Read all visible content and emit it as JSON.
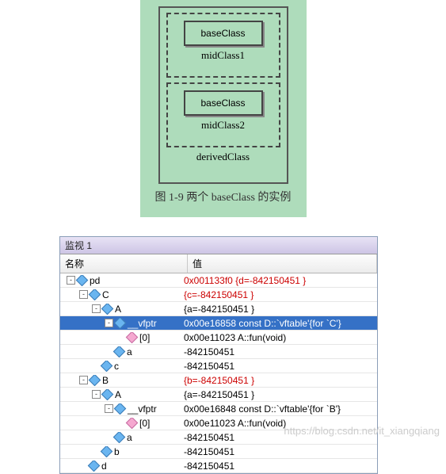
{
  "diagram": {
    "baseClass_label": "baseClass",
    "midClass1_label": "midClass1",
    "midClass2_label": "midClass2",
    "derived_label": "derivedClass",
    "caption": "图 1-9  两个 baseClass 的实例"
  },
  "watch": {
    "title": "监视 1",
    "col_name": "名称",
    "col_value": "值",
    "rows": [
      {
        "indent": 0,
        "toggle": "-",
        "icon": "blue",
        "name": "pd",
        "value": "0x001133f0 {d=-842150451 }",
        "red": true,
        "sel": false
      },
      {
        "indent": 1,
        "toggle": "-",
        "icon": "blue",
        "name": "C",
        "value": "{c=-842150451 }",
        "red": true,
        "sel": false
      },
      {
        "indent": 2,
        "toggle": "-",
        "icon": "blue",
        "name": "A",
        "value": "{a=-842150451 }",
        "red": false,
        "sel": false
      },
      {
        "indent": 3,
        "toggle": "-",
        "icon": "blue",
        "name": "__vfptr",
        "value": "0x00e16858 const D::`vftable'{for `C'}",
        "red": false,
        "sel": true
      },
      {
        "indent": 4,
        "toggle": "",
        "icon": "pink",
        "name": "[0]",
        "value": "0x00e11023 A::fun(void)",
        "red": false,
        "sel": false
      },
      {
        "indent": 3,
        "toggle": "",
        "icon": "blue",
        "name": "a",
        "value": "-842150451",
        "red": false,
        "sel": false
      },
      {
        "indent": 2,
        "toggle": "",
        "icon": "blue",
        "name": "c",
        "value": "-842150451",
        "red": false,
        "sel": false
      },
      {
        "indent": 1,
        "toggle": "-",
        "icon": "blue",
        "name": "B",
        "value": "{b=-842150451 }",
        "red": true,
        "sel": false
      },
      {
        "indent": 2,
        "toggle": "-",
        "icon": "blue",
        "name": "A",
        "value": "{a=-842150451 }",
        "red": false,
        "sel": false
      },
      {
        "indent": 3,
        "toggle": "-",
        "icon": "blue",
        "name": "__vfptr",
        "value": "0x00e16848 const D::`vftable'{for `B'}",
        "red": false,
        "sel": false
      },
      {
        "indent": 4,
        "toggle": "",
        "icon": "pink",
        "name": "[0]",
        "value": "0x00e11023 A::fun(void)",
        "red": false,
        "sel": false
      },
      {
        "indent": 3,
        "toggle": "",
        "icon": "blue",
        "name": "a",
        "value": "-842150451",
        "red": false,
        "sel": false
      },
      {
        "indent": 2,
        "toggle": "",
        "icon": "blue",
        "name": "b",
        "value": "-842150451",
        "red": false,
        "sel": false
      },
      {
        "indent": 1,
        "toggle": "",
        "icon": "blue",
        "name": "d",
        "value": "-842150451",
        "red": false,
        "sel": false
      }
    ]
  },
  "watermark": "https://blog.csdn.net/it_xiangqiang"
}
